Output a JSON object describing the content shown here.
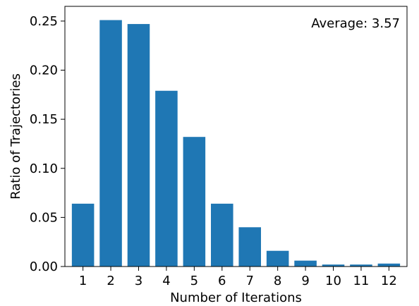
{
  "chart_data": {
    "type": "bar",
    "categories": [
      "1",
      "2",
      "3",
      "4",
      "5",
      "6",
      "7",
      "8",
      "9",
      "10",
      "11",
      "12"
    ],
    "values": [
      0.064,
      0.251,
      0.247,
      0.179,
      0.132,
      0.064,
      0.04,
      0.016,
      0.006,
      0.002,
      0.002,
      0.003
    ],
    "title": "",
    "xlabel": "Number of Iterations",
    "ylabel": "Ratio of Trajectories",
    "ylim": [
      0,
      0.265
    ],
    "yticks": [
      "0.00",
      "0.05",
      "0.10",
      "0.15",
      "0.20",
      "0.25"
    ],
    "bar_color": "#1f77b4",
    "annotation": "Average: 3.57",
    "grid": false,
    "legend": "none"
  }
}
